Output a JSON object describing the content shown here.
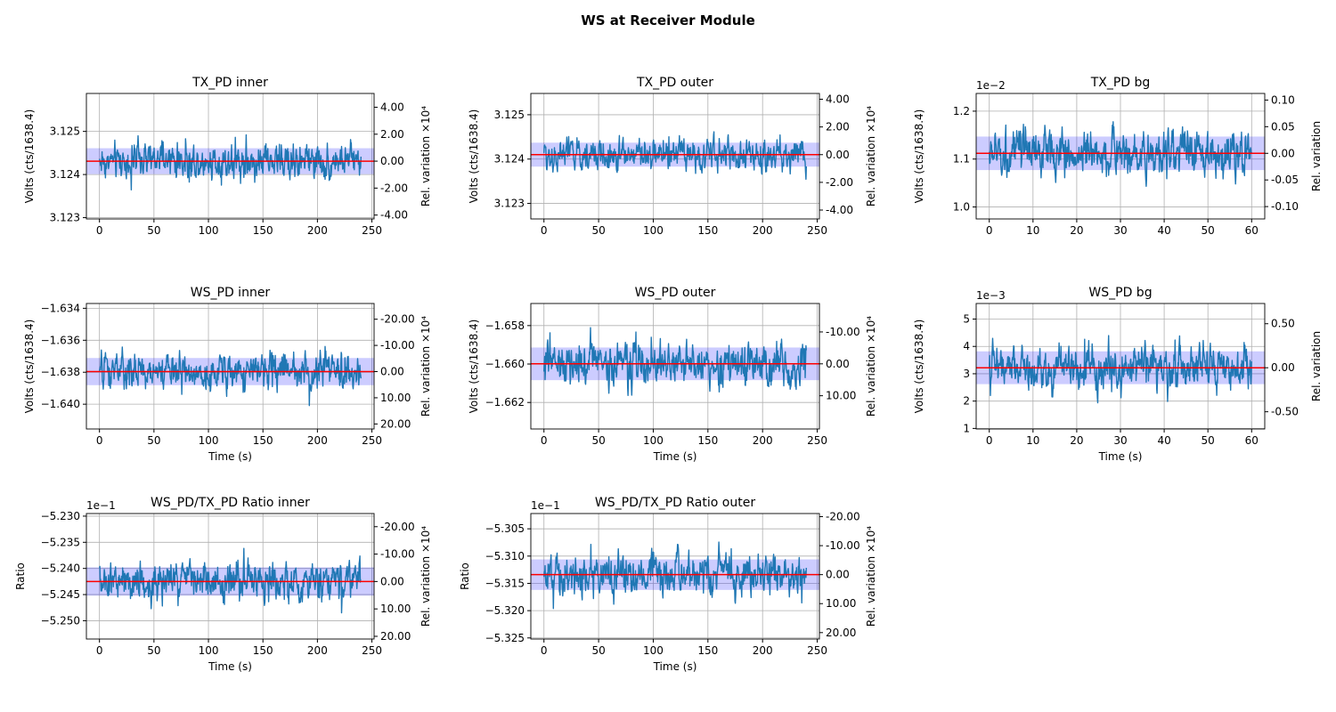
{
  "figure": {
    "title": "WS at Receiver Module"
  },
  "colors": {
    "trace": "#1f77b4",
    "mean_line": "#ff0000",
    "band": "#0000ff",
    "grid": "#b0b0b0"
  },
  "chart_data": [
    {
      "type": "line",
      "title": "TX_PD inner",
      "xlabel": "",
      "ylabel": "Volts (cts/1638.4)",
      "y2label": "Rel. variation ×10⁴",
      "x_range": [
        0,
        240
      ],
      "xlim": [
        -12,
        252
      ],
      "xticks": [
        0,
        50,
        100,
        150,
        200,
        250
      ],
      "ylim": [
        3.12297,
        3.12588
      ],
      "yticks": [
        3.123,
        3.124,
        3.125
      ],
      "ytick_labels": [
        "3.123",
        "3.124",
        "3.125"
      ],
      "y2ticks": [
        4.0,
        2.0,
        0.0,
        -2.0,
        -4.0
      ],
      "y2tick_labels": [
        "4.00",
        "2.00",
        "0.00",
        "-2.00",
        "-4.00"
      ],
      "mean": 3.12431,
      "std": 0.0003,
      "offset_label": "",
      "grid": true
    },
    {
      "type": "line",
      "title": "TX_PD outer",
      "xlabel": "",
      "ylabel": "Volts (cts/1638.4)",
      "y2label": "Rel. variation ×10⁴",
      "x_range": [
        0,
        240
      ],
      "xlim": [
        -12,
        252
      ],
      "xticks": [
        0,
        50,
        100,
        150,
        200,
        250
      ],
      "ylim": [
        3.12265,
        3.12548
      ],
      "yticks": [
        3.123,
        3.124,
        3.125
      ],
      "ytick_labels": [
        "3.123",
        "3.124",
        "3.125"
      ],
      "y2ticks": [
        4.0,
        2.0,
        0.0,
        -2.0,
        -4.0
      ],
      "y2tick_labels": [
        "4.00",
        "2.00",
        "0.00",
        "-2.00",
        "-4.00"
      ],
      "mean": 3.1241,
      "std": 0.00027,
      "offset_label": "",
      "grid": true
    },
    {
      "type": "line",
      "title": "TX_PD bg",
      "xlabel": "",
      "ylabel": "Volts (cts/1638.4)",
      "y2label": "Rel. variation",
      "x_range": [
        0,
        60
      ],
      "xlim": [
        -3,
        63
      ],
      "xticks": [
        0,
        10,
        20,
        30,
        40,
        50,
        60
      ],
      "ylim": [
        0.00975,
        0.01237
      ],
      "yticks": [
        0.01,
        0.011,
        0.012
      ],
      "ytick_labels": [
        "1.0",
        "1.1",
        "1.2"
      ],
      "y2ticks": [
        0.1,
        0.05,
        0.0,
        -0.05,
        -0.1
      ],
      "y2tick_labels": [
        "0.10",
        "0.05",
        "0.00",
        "-0.05",
        "-0.10"
      ],
      "mean": 0.01112,
      "std": 0.00035,
      "offset_label": "1e−2",
      "grid": true
    },
    {
      "type": "line",
      "title": "WS_PD inner",
      "xlabel": "Time (s)",
      "ylabel": "Volts (cts/1638.4)",
      "y2label": "Rel. variation ×10⁴",
      "x_range": [
        0,
        240
      ],
      "xlim": [
        -12,
        252
      ],
      "xticks": [
        0,
        50,
        100,
        150,
        200,
        250
      ],
      "ylim": [
        -1.64155,
        -1.6337
      ],
      "yticks": [
        -1.64,
        -1.638,
        -1.636,
        -1.634
      ],
      "ytick_labels": [
        "−1.640",
        "−1.638",
        "−1.636",
        "−1.634"
      ],
      "y2ticks": [
        -20,
        -10,
        0,
        10,
        20
      ],
      "y2tick_labels": [
        "-20.00",
        "-10.00",
        "0.00",
        "10.00",
        "20.00"
      ],
      "mean": -1.63796,
      "std": 0.00085,
      "offset_label": "",
      "grid": true
    },
    {
      "type": "line",
      "title": "WS_PD outer",
      "xlabel": "Time (s)",
      "ylabel": "Volts (cts/1638.4)",
      "y2label": "Rel. variation ×10⁴",
      "x_range": [
        0,
        240
      ],
      "xlim": [
        -12,
        252
      ],
      "xticks": [
        0,
        50,
        100,
        150,
        200,
        250
      ],
      "ylim": [
        -1.66338,
        -1.65685
      ],
      "yticks": [
        -1.662,
        -1.66,
        -1.658
      ],
      "ytick_labels": [
        "−1.662",
        "−1.660",
        "−1.658"
      ],
      "y2ticks": [
        -10,
        0,
        10
      ],
      "y2tick_labels": [
        "-10.00",
        "0.00",
        "10.00"
      ],
      "mean": -1.65999,
      "std": 0.00085,
      "offset_label": "",
      "grid": true
    },
    {
      "type": "line",
      "title": "WS_PD bg",
      "xlabel": "Time (s)",
      "ylabel": "Volts (cts/1638.4)",
      "y2label": "Rel. variation",
      "x_range": [
        0,
        60
      ],
      "xlim": [
        -3,
        63
      ],
      "xticks": [
        0,
        10,
        20,
        30,
        40,
        50,
        60
      ],
      "ylim": [
        0.00098,
        0.00557
      ],
      "yticks": [
        0.001,
        0.002,
        0.003,
        0.004,
        0.005
      ],
      "ytick_labels": [
        "1",
        "2",
        "3",
        "4",
        "5"
      ],
      "y2ticks": [
        0.5,
        0.0,
        -0.5
      ],
      "y2tick_labels": [
        "0.50",
        "0.00",
        "-0.50"
      ],
      "mean": 0.00322,
      "std": 0.0006,
      "offset_label": "1e−3",
      "grid": true
    },
    {
      "type": "line",
      "title": "WS_PD/TX_PD Ratio inner",
      "xlabel": "Time (s)",
      "ylabel": "Ratio",
      "y2label": "Rel. variation ×10⁴",
      "x_range": [
        0,
        240
      ],
      "xlim": [
        -12,
        252
      ],
      "xticks": [
        0,
        50,
        100,
        150,
        200,
        250
      ],
      "ylim": [
        -0.52535,
        -0.52295
      ],
      "yticks": [
        -0.525,
        -0.5245,
        -0.524,
        -0.5235,
        -0.523
      ],
      "ytick_labels": [
        "−5.250",
        "−5.245",
        "−5.240",
        "−5.235",
        "−5.230"
      ],
      "y2ticks": [
        -20,
        -10,
        0,
        10,
        20
      ],
      "y2tick_labels": [
        "-20.00",
        "-10.00",
        "0.00",
        "10.00",
        "20.00"
      ],
      "mean": -0.52425,
      "std": 0.00027,
      "offset_label": "1e−1",
      "grid": true
    },
    {
      "type": "line",
      "title": "WS_PD/TX_PD Ratio outer",
      "xlabel": "Time (s)",
      "ylabel": "Ratio",
      "y2label": "Rel. variation ×10⁴",
      "x_range": [
        0,
        240
      ],
      "xlim": [
        -12,
        252
      ],
      "xticks": [
        0,
        50,
        100,
        150,
        200,
        250
      ],
      "ylim": [
        -0.53252,
        -0.53022
      ],
      "yticks": [
        -0.5325,
        -0.532,
        -0.5315,
        -0.531,
        -0.5305
      ],
      "ytick_labels": [
        "−5.325",
        "−5.320",
        "−5.315",
        "−5.310",
        "−5.305"
      ],
      "y2ticks": [
        -20,
        -10,
        0,
        10,
        20
      ],
      "y2tick_labels": [
        "-20.00",
        "-10.00",
        "0.00",
        "10.00",
        "20.00"
      ],
      "mean": -0.53134,
      "std": 0.00028,
      "offset_label": "1e−1",
      "grid": true
    }
  ]
}
